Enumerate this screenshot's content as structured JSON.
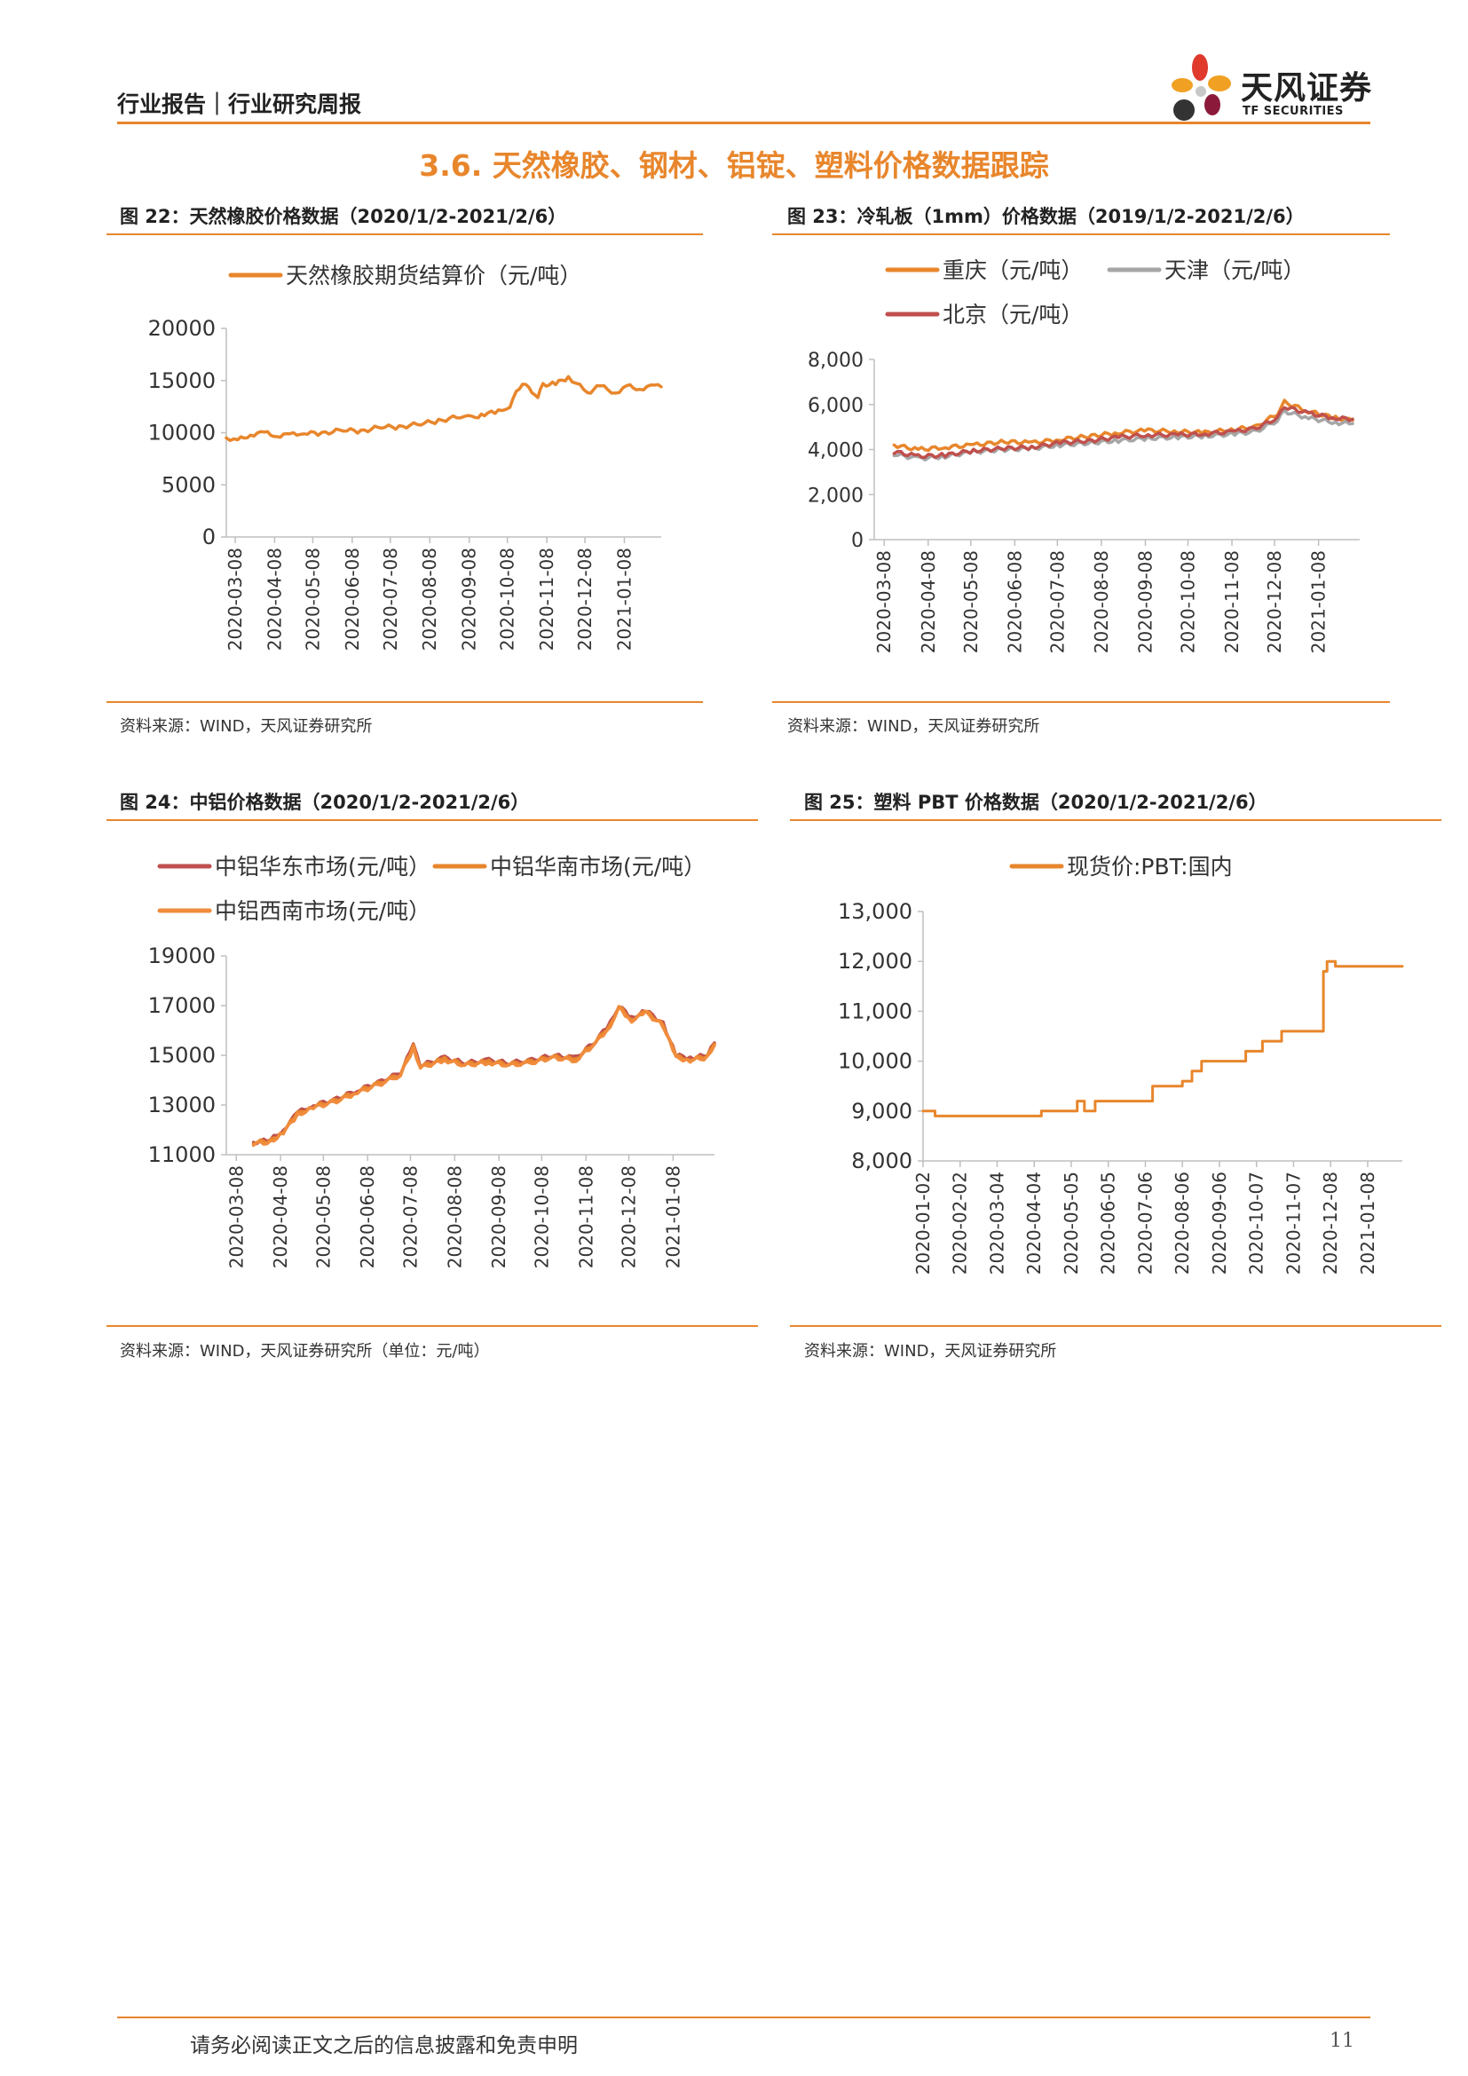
{
  "header": {
    "report_type": "行业报告｜行业研究周报"
  },
  "logo": {
    "name_cn": "天风证券",
    "name_en": "TF SECURITIES",
    "colors": [
      "#e03a2d",
      "#f0a023",
      "#8b1a3a",
      "#333333",
      "#c8c8c8"
    ]
  },
  "section_title": "3.6. 天然橡胶、钢材、铝锭、塑料价格数据跟踪",
  "accent_color": "#e8862c",
  "charts": {
    "fig22": {
      "title": "图 22：天然橡胶价格数据（2020/1/2-2021/2/6）",
      "source": "资料来源：WIND，天风证券研究所"
    },
    "fig23": {
      "title": "图 23：冷轧板（1mm）价格数据（2019/1/2-2021/2/6）",
      "source": "资料来源：WIND，天风证券研究所"
    },
    "fig24": {
      "title": "图 24：中铝价格数据（2020/1/2-2021/2/6）",
      "source": "资料来源：WIND，天风证券研究所（单位：元/吨）"
    },
    "fig25": {
      "title": "图 25：塑料 PBT 价格数据（2020/1/2-2021/2/6）",
      "source": "资料来源：WIND，天风证券研究所"
    }
  },
  "chart_data": [
    {
      "id": "fig22",
      "type": "line",
      "ylim": [
        0,
        20000
      ],
      "yticks": [
        "0",
        "5000",
        "10000",
        "15000",
        "20000"
      ],
      "yticks_values": [
        0,
        5000,
        10000,
        15000,
        20000
      ],
      "xticks": [
        "2020-03-08",
        "2020-04-08",
        "2020-05-08",
        "2020-06-08",
        "2020-07-08",
        "2020-08-08",
        "2020-09-08",
        "2020-10-08",
        "2020-11-08",
        "2020-12-08",
        "2021-01-08"
      ],
      "xlim": [
        "2020-03-01",
        "2021-02-06"
      ],
      "legend_position": "top",
      "series": [
        {
          "name": "天然橡胶期货结算价（元/吨）",
          "color": "#e8862c",
          "x": [
            "2020-03-01",
            "2020-03-10",
            "2020-03-20",
            "2020-03-31",
            "2020-04-10",
            "2020-04-20",
            "2020-05-01",
            "2020-05-15",
            "2020-06-01",
            "2020-06-15",
            "2020-07-01",
            "2020-07-15",
            "2020-08-01",
            "2020-08-15",
            "2020-09-01",
            "2020-09-10",
            "2020-09-20",
            "2020-10-01",
            "2020-10-10",
            "2020-10-15",
            "2020-10-20",
            "2020-10-25",
            "2020-11-01",
            "2020-11-05",
            "2020-11-15",
            "2020-11-25",
            "2020-12-01",
            "2020-12-10",
            "2020-12-20",
            "2021-01-01",
            "2021-01-10",
            "2021-01-20",
            "2021-02-01",
            "2021-02-06"
          ],
          "y": [
            9500,
            9300,
            9800,
            10000,
            9700,
            9800,
            10000,
            9900,
            10300,
            10100,
            10600,
            10500,
            10900,
            11100,
            11600,
            11400,
            11800,
            12000,
            12600,
            13800,
            14800,
            14200,
            13500,
            14600,
            14700,
            15300,
            14800,
            13800,
            14500,
            13800,
            14500,
            14200,
            14500,
            14400
          ]
        }
      ]
    },
    {
      "id": "fig23",
      "type": "line",
      "ylim": [
        0,
        8000
      ],
      "yticks": [
        "0",
        "2,000",
        "4,000",
        "6,000",
        "8,000"
      ],
      "yticks_values": [
        0,
        2000,
        4000,
        6000,
        8000
      ],
      "xticks": [
        "2020-03-08",
        "2020-04-08",
        "2020-05-08",
        "2020-06-08",
        "2020-07-08",
        "2020-08-08",
        "2020-09-08",
        "2020-10-08",
        "2020-11-08",
        "2020-12-08",
        "2021-01-08"
      ],
      "xlim": [
        "2020-03-01",
        "2021-02-06"
      ],
      "legend_position": "top",
      "series": [
        {
          "name": "重庆（元/吨）",
          "color": "#e8862c",
          "x": [
            "2020-03-15",
            "2020-04-01",
            "2020-04-20",
            "2020-05-10",
            "2020-06-01",
            "2020-06-20",
            "2020-07-10",
            "2020-08-01",
            "2020-08-20",
            "2020-09-10",
            "2020-10-01",
            "2020-10-20",
            "2020-11-10",
            "2020-11-25",
            "2020-12-10",
            "2020-12-15",
            "2021-01-01",
            "2021-01-20",
            "2021-02-01"
          ],
          "y": [
            4200,
            4000,
            4100,
            4200,
            4350,
            4300,
            4450,
            4600,
            4750,
            4850,
            4800,
            4750,
            4900,
            5000,
            5600,
            6100,
            5700,
            5400,
            5300
          ]
        },
        {
          "name": "天津（元/吨）",
          "color": "#a6a6a6",
          "x": [
            "2020-03-15",
            "2020-04-01",
            "2020-04-20",
            "2020-05-10",
            "2020-06-01",
            "2020-06-20",
            "2020-07-10",
            "2020-08-01",
            "2020-08-20",
            "2020-09-10",
            "2020-10-01",
            "2020-10-20",
            "2020-11-10",
            "2020-11-25",
            "2020-12-10",
            "2020-12-15",
            "2021-01-01",
            "2021-01-20",
            "2021-02-01"
          ],
          "y": [
            3800,
            3600,
            3700,
            3900,
            4000,
            4050,
            4200,
            4300,
            4400,
            4500,
            4550,
            4600,
            4700,
            4800,
            5300,
            5700,
            5400,
            5200,
            5150
          ]
        },
        {
          "name": "北京（元/吨）",
          "color": "#c0504d",
          "x": [
            "2020-03-15",
            "2020-04-01",
            "2020-04-20",
            "2020-05-10",
            "2020-06-01",
            "2020-06-20",
            "2020-07-10",
            "2020-08-01",
            "2020-08-20",
            "2020-09-10",
            "2020-10-01",
            "2020-10-20",
            "2020-11-10",
            "2020-11-25",
            "2020-12-10",
            "2020-12-15",
            "2021-01-01",
            "2021-01-20",
            "2021-02-01"
          ],
          "y": [
            3900,
            3700,
            3750,
            3950,
            4050,
            4100,
            4300,
            4400,
            4550,
            4650,
            4650,
            4700,
            4800,
            4950,
            5400,
            5900,
            5600,
            5400,
            5350
          ]
        }
      ]
    },
    {
      "id": "fig24",
      "type": "line",
      "ylim": [
        11000,
        19000
      ],
      "yticks": [
        "11000",
        "13000",
        "15000",
        "17000",
        "19000"
      ],
      "yticks_values": [
        11000,
        13000,
        15000,
        17000,
        19000
      ],
      "xticks": [
        "2020-03-08",
        "2020-04-08",
        "2020-05-08",
        "2020-06-08",
        "2020-07-08",
        "2020-08-08",
        "2020-09-08",
        "2020-10-08",
        "2020-11-08",
        "2020-12-08",
        "2021-01-08"
      ],
      "xlim": [
        "2020-03-01",
        "2021-02-06"
      ],
      "legend_position": "top",
      "series": [
        {
          "name": "中铝华东市场(元/吨）",
          "color": "#c0504d",
          "x": [
            "2020-03-20",
            "2020-04-01",
            "2020-04-10",
            "2020-04-20",
            "2020-05-01",
            "2020-05-15",
            "2020-06-01",
            "2020-06-15",
            "2020-07-01",
            "2020-07-10",
            "2020-07-15",
            "2020-08-01",
            "2020-08-15",
            "2020-09-01",
            "2020-09-15",
            "2020-10-01",
            "2020-10-15",
            "2020-11-01",
            "2020-11-15",
            "2020-11-25",
            "2020-12-01",
            "2020-12-10",
            "2020-12-20",
            "2021-01-01",
            "2021-01-10",
            "2021-01-20",
            "2021-02-01",
            "2021-02-06"
          ],
          "y": [
            11500,
            11600,
            12000,
            12700,
            13000,
            13200,
            13600,
            13900,
            14300,
            15400,
            14600,
            14900,
            14700,
            14800,
            14700,
            14800,
            15000,
            14900,
            15600,
            16300,
            17000,
            16500,
            16800,
            16300,
            15000,
            14900,
            15000,
            15500
          ]
        },
        {
          "name": "中铝华南市场(元/吨）",
          "color": "#e8862c",
          "x": [
            "2020-03-20",
            "2020-04-01",
            "2020-04-10",
            "2020-04-20",
            "2020-05-01",
            "2020-05-15",
            "2020-06-01",
            "2020-06-15",
            "2020-07-01",
            "2020-07-10",
            "2020-07-15",
            "2020-08-01",
            "2020-08-15",
            "2020-09-01",
            "2020-09-15",
            "2020-10-01",
            "2020-10-15",
            "2020-11-01",
            "2020-11-15",
            "2020-11-25",
            "2020-12-01",
            "2020-12-10",
            "2020-12-20",
            "2021-01-01",
            "2021-01-10",
            "2021-01-20",
            "2021-02-01",
            "2021-02-06"
          ],
          "y": [
            11500,
            11550,
            11950,
            12650,
            12950,
            13150,
            13550,
            13850,
            14250,
            15350,
            14550,
            14850,
            14650,
            14750,
            14650,
            14750,
            14950,
            14850,
            15550,
            16250,
            16950,
            16450,
            16750,
            16250,
            14950,
            14850,
            14950,
            15450
          ]
        },
        {
          "name": "中铝西南市场(元/吨）",
          "color": "#f08c3c",
          "x": [
            "2020-03-20",
            "2020-04-01",
            "2020-04-10",
            "2020-04-20",
            "2020-05-01",
            "2020-05-15",
            "2020-06-01",
            "2020-06-15",
            "2020-07-01",
            "2020-07-10",
            "2020-07-15",
            "2020-08-01",
            "2020-08-15",
            "2020-09-01",
            "2020-09-15",
            "2020-10-01",
            "2020-10-15",
            "2020-11-01",
            "2020-11-15",
            "2020-11-25",
            "2020-12-01",
            "2020-12-10",
            "2020-12-20",
            "2021-01-01",
            "2021-01-10",
            "2021-01-20",
            "2021-02-01",
            "2021-02-06"
          ],
          "y": [
            11450,
            11500,
            11900,
            12600,
            12900,
            13100,
            13500,
            13800,
            14200,
            15300,
            14500,
            14800,
            14600,
            14700,
            14600,
            14700,
            14900,
            14800,
            15500,
            16200,
            16900,
            16400,
            16700,
            16200,
            14900,
            14800,
            14900,
            15400
          ]
        }
      ]
    },
    {
      "id": "fig25",
      "type": "line",
      "ylim": [
        8000,
        13000
      ],
      "yticks": [
        "8,000",
        "9,000",
        "10,000",
        "11,000",
        "12,000",
        "13,000"
      ],
      "yticks_values": [
        8000,
        9000,
        10000,
        11000,
        12000,
        13000
      ],
      "xticks": [
        "2020-01-02",
        "2020-02-02",
        "2020-03-04",
        "2020-04-04",
        "2020-05-05",
        "2020-06-05",
        "2020-07-06",
        "2020-08-06",
        "2020-09-06",
        "2020-10-07",
        "2020-11-07",
        "2020-12-08",
        "2021-01-08"
      ],
      "xlim": [
        "2020-01-02",
        "2021-02-06"
      ],
      "legend_position": "top",
      "series": [
        {
          "name": "现货价:PBT:国内",
          "color": "#e8862c",
          "step": true,
          "x": [
            "2020-01-02",
            "2020-01-12",
            "2020-04-10",
            "2020-04-28",
            "2020-05-10",
            "2020-05-16",
            "2020-05-25",
            "2020-07-12",
            "2020-07-28",
            "2020-08-06",
            "2020-08-14",
            "2020-08-22",
            "2020-09-20",
            "2020-09-28",
            "2020-10-12",
            "2020-10-28",
            "2020-11-18",
            "2020-12-02",
            "2020-12-05",
            "2020-12-12",
            "2021-02-06"
          ],
          "y": [
            9000,
            8900,
            9000,
            9000,
            9200,
            9000,
            9200,
            9500,
            9500,
            9600,
            9800,
            10000,
            10000,
            10200,
            10400,
            10600,
            10600,
            11800,
            12000,
            11900,
            11900
          ]
        }
      ]
    }
  ]
}
